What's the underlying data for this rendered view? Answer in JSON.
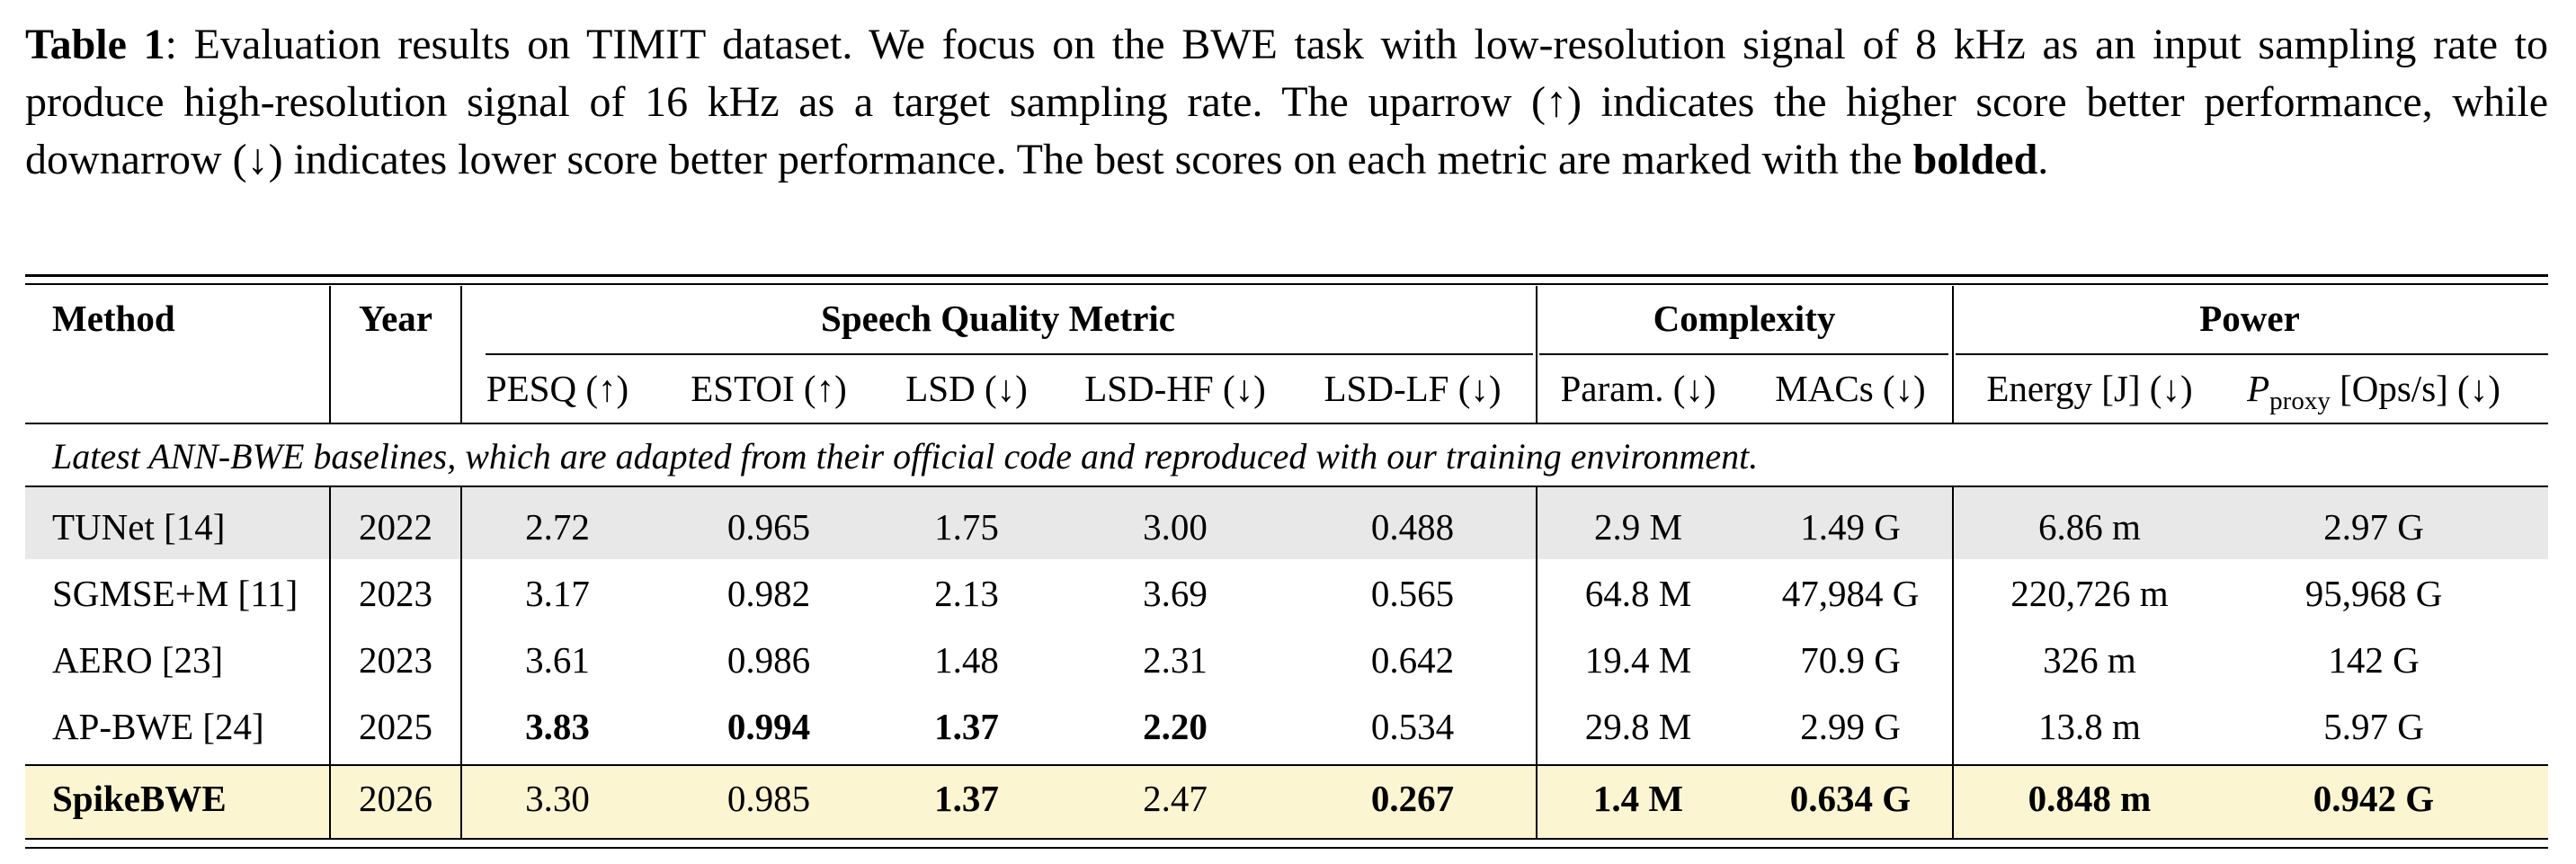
{
  "caption": {
    "label": "Table 1",
    "text": ": Evaluation results on TIMIT dataset. We focus on the BWE task with low-resolution signal of 8 kHz as an input sampling rate to produce high-resolution signal of 16 kHz as a target sampling rate.  The uparrow (↑) indicates the higher score better performance, while downarrow (↓) indicates lower score better performance.  The best scores on each metric are marked with the ",
    "bold_word": "bolded",
    "end": "."
  },
  "header": {
    "method": "Method",
    "year": "Year",
    "group_quality": "Speech Quality Metric",
    "group_complexity": "Complexity",
    "group_power": "Power",
    "pesq": "PESQ (↑)",
    "estoi": "ESTOI (↑)",
    "lsd": "LSD (↓)",
    "lsd_hf": "LSD-HF (↓)",
    "lsd_lf": "LSD-LF (↓)",
    "param": "Param. (↓)",
    "macs": "MACs (↓)",
    "energy": "Energy [J] (↓)",
    "pproxy_p": "P",
    "pproxy_sub": "proxy",
    "pproxy_rest": " [Ops/s] (↓)"
  },
  "note": "Latest ANN-BWE baselines, which are adapted from their official code and reproduced with our training environment.",
  "rows": [
    {
      "method": "TUNet [14]",
      "year": "2022",
      "pesq": "2.72",
      "estoi": "0.965",
      "lsd": "1.75",
      "lsd_hf": "3.00",
      "lsd_lf": "0.488",
      "param": "2.9 M",
      "macs": "1.49 G",
      "energy": "6.86 m",
      "pproxy": "2.97 G"
    },
    {
      "method": "SGMSE+M [11]",
      "year": "2023",
      "pesq": "3.17",
      "estoi": "0.982",
      "lsd": "2.13",
      "lsd_hf": "3.69",
      "lsd_lf": "0.565",
      "param": "64.8 M",
      "macs": "47,984 G",
      "energy": "220,726 m",
      "pproxy": "95,968 G"
    },
    {
      "method": "AERO [23]",
      "year": "2023",
      "pesq": "3.61",
      "estoi": "0.986",
      "lsd": "1.48",
      "lsd_hf": "2.31",
      "lsd_lf": "0.642",
      "param": "19.4 M",
      "macs": "70.9 G",
      "energy": "326 m",
      "pproxy": "142 G"
    },
    {
      "method": "AP-BWE [24]",
      "year": "2025",
      "pesq": "3.83",
      "estoi": "0.994",
      "lsd": "1.37",
      "lsd_hf": "2.20",
      "lsd_lf": "0.534",
      "param": "29.8 M",
      "macs": "2.99 G",
      "energy": "13.8 m",
      "pproxy": "5.97 G"
    },
    {
      "method": "SpikeBWE",
      "year": "2026",
      "pesq": "3.30",
      "estoi": "0.985",
      "lsd": "1.37",
      "lsd_hf": "2.47",
      "lsd_lf": "0.267",
      "param": "1.4 M",
      "macs": "0.634 G",
      "energy": "0.848 m",
      "pproxy": "0.942 G"
    }
  ],
  "colors": {
    "baseline_highlight": "#e8e8e8",
    "ours_highlight": "#fcf5d2"
  }
}
